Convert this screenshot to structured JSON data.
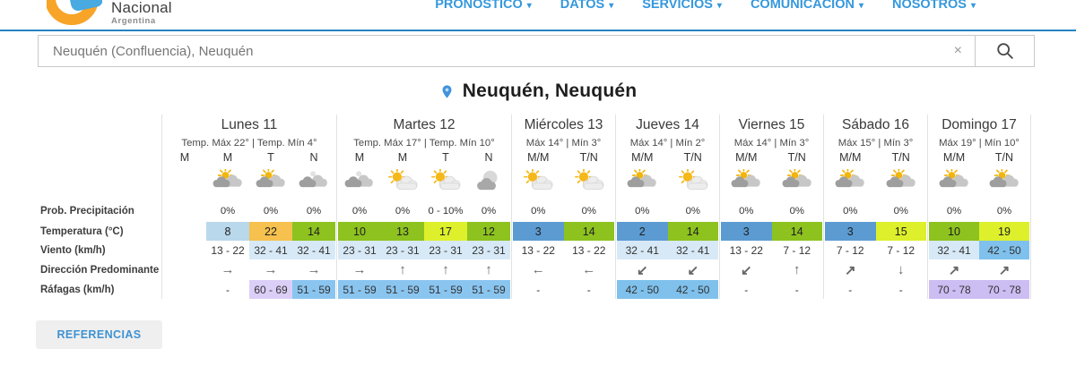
{
  "nav": {
    "caret": "▾",
    "accent_color": "#3598dc",
    "items": [
      {
        "id": "pronostico",
        "label": "PRONÓSTICO"
      },
      {
        "id": "datos",
        "label": "DATOS"
      },
      {
        "id": "servicios",
        "label": "SERVICIOS"
      },
      {
        "id": "comunicacion",
        "label": "COMUNICACIÓN"
      },
      {
        "id": "nosotros",
        "label": "NOSOTROS"
      }
    ]
  },
  "logo": {
    "name_line": "Nacional",
    "country_line": "Argentina"
  },
  "search": {
    "value": "Neuquén (Confluencia), Neuquén",
    "clear_label": "×"
  },
  "location_title": "Neuquén, Neuquén",
  "references_button": "REFERENCIAS",
  "table": {
    "row_labels": [
      "Prob. Precipitación",
      "Temperatura (°C)",
      "Viento (km/h)",
      "Dirección Predominante",
      "Ráfagas (km/h)"
    ],
    "days": [
      {
        "id": "lunes-11",
        "name": "Lunes 11",
        "temps": "Temp. Máx 22° | Temp. Mín 4°",
        "cols": [
          "M",
          "M",
          "T",
          "N"
        ],
        "wide": true,
        "cells": [
          {
            "empty": true
          },
          {
            "icon": "sun-behind-clouds",
            "prob": "0%",
            "temp": "8",
            "temp_bg": "#b9d8ec",
            "wind": "13 - 22",
            "wind_bg": "",
            "dir": "→",
            "gust": "-",
            "gust_bg": ""
          },
          {
            "icon": "sun-behind-clouds",
            "prob": "0%",
            "temp": "22",
            "temp_bg": "#f6c14e",
            "wind": "32 - 41",
            "wind_bg": "#d7e9f6",
            "dir": "→",
            "gust": "60 - 69",
            "gust_bg": "#dbcff7"
          },
          {
            "icon": "clouds-with-moon",
            "prob": "0%",
            "temp": "14",
            "temp_bg": "#8dc21f",
            "wind": "32 - 41",
            "wind_bg": "#d7e9f6",
            "dir": "→",
            "gust": "51 - 59",
            "gust_bg": "#8ac5f0"
          }
        ]
      },
      {
        "id": "martes-12",
        "name": "Martes 12",
        "temps": "Temp. Máx 17° | Temp. Mín 10°",
        "cols": [
          "M",
          "M",
          "T",
          "N"
        ],
        "wide": true,
        "cells": [
          {
            "icon": "clouds-with-moon",
            "prob": "0%",
            "temp": "10",
            "temp_bg": "#8dc21f",
            "wind": "23 - 31",
            "wind_bg": "#d7e9f6",
            "dir": "→",
            "gust": "51 - 59",
            "gust_bg": "#8ac5f0"
          },
          {
            "icon": "sun-and-cloud",
            "prob": "0%",
            "temp": "13",
            "temp_bg": "#8dc21f",
            "wind": "23 - 31",
            "wind_bg": "#d7e9f6",
            "dir": "↑",
            "gust": "51 - 59",
            "gust_bg": "#8ac5f0"
          },
          {
            "icon": "sun-and-cloud",
            "prob": "0 - 10%",
            "temp": "17",
            "temp_bg": "#ddf02b",
            "wind": "23 - 31",
            "wind_bg": "#d7e9f6",
            "dir": "↑",
            "gust": "51 - 59",
            "gust_bg": "#8ac5f0"
          },
          {
            "icon": "moon-behind-cloud",
            "prob": "0%",
            "temp": "12",
            "temp_bg": "#8dc21f",
            "wind": "23 - 31",
            "wind_bg": "#d7e9f6",
            "dir": "↑",
            "gust": "51 - 59",
            "gust_bg": "#8ac5f0"
          }
        ]
      },
      {
        "id": "miercoles-13",
        "name": "Miércoles 13",
        "temps": "Máx 14° | Mín 3°",
        "cols": [
          "M/M",
          "T/N"
        ],
        "wide": false,
        "cells": [
          {
            "icon": "sun-and-cloud",
            "prob": "0%",
            "temp": "3",
            "temp_bg": "#5b9bd1",
            "wind": "13 - 22",
            "wind_bg": "",
            "dir": "←",
            "gust": "-",
            "gust_bg": ""
          },
          {
            "icon": "sun-and-cloud",
            "prob": "0%",
            "temp": "14",
            "temp_bg": "#8dc21f",
            "wind": "13 - 22",
            "wind_bg": "",
            "dir": "←",
            "gust": "-",
            "gust_bg": ""
          }
        ]
      },
      {
        "id": "jueves-14",
        "name": "Jueves 14",
        "temps": "Máx 14° | Mín 2°",
        "cols": [
          "M/M",
          "T/N"
        ],
        "wide": false,
        "cells": [
          {
            "icon": "sun-behind-clouds",
            "prob": "0%",
            "temp": "2",
            "temp_bg": "#5b9bd1",
            "wind": "32 - 41",
            "wind_bg": "#d7e9f6",
            "dir": "↙",
            "gust": "42 - 50",
            "gust_bg": "#7fc1ec"
          },
          {
            "icon": "sun-and-cloud",
            "prob": "0%",
            "temp": "14",
            "temp_bg": "#8dc21f",
            "wind": "32 - 41",
            "wind_bg": "#d7e9f6",
            "dir": "↙",
            "gust": "42 - 50",
            "gust_bg": "#7fc1ec"
          }
        ]
      },
      {
        "id": "viernes-15",
        "name": "Viernes 15",
        "temps": "Máx 14° | Mín 3°",
        "cols": [
          "M/M",
          "T/N"
        ],
        "wide": false,
        "cells": [
          {
            "icon": "sun-behind-clouds",
            "prob": "0%",
            "temp": "3",
            "temp_bg": "#5b9bd1",
            "wind": "13 - 22",
            "wind_bg": "",
            "dir": "↙",
            "gust": "-",
            "gust_bg": ""
          },
          {
            "icon": "sun-behind-clouds",
            "prob": "0%",
            "temp": "14",
            "temp_bg": "#8dc21f",
            "wind": "7 - 12",
            "wind_bg": "",
            "dir": "↑",
            "gust": "-",
            "gust_bg": ""
          }
        ]
      },
      {
        "id": "sabado-16",
        "name": "Sábado 16",
        "temps": "Máx 15° | Mín 3°",
        "cols": [
          "M/M",
          "T/N"
        ],
        "wide": false,
        "cells": [
          {
            "icon": "sun-behind-clouds",
            "prob": "0%",
            "temp": "3",
            "temp_bg": "#5b9bd1",
            "wind": "7 - 12",
            "wind_bg": "",
            "dir": "↗",
            "gust": "-",
            "gust_bg": ""
          },
          {
            "icon": "sun-behind-clouds",
            "prob": "0%",
            "temp": "15",
            "temp_bg": "#ddf02b",
            "wind": "7 - 12",
            "wind_bg": "",
            "dir": "↓",
            "gust": "-",
            "gust_bg": ""
          }
        ]
      },
      {
        "id": "domingo-17",
        "name": "Domingo 17",
        "temps": "Máx 19° | Mín 10°",
        "cols": [
          "M/M",
          "T/N"
        ],
        "wide": false,
        "cells": [
          {
            "icon": "sun-behind-clouds",
            "prob": "0%",
            "temp": "10",
            "temp_bg": "#8dc21f",
            "wind": "32 - 41",
            "wind_bg": "#d7e9f6",
            "dir": "↗",
            "gust": "70 - 78",
            "gust_bg": "#ccbdf3"
          },
          {
            "icon": "sun-behind-clouds",
            "prob": "0%",
            "temp": "19",
            "temp_bg": "#ddf02b",
            "wind": "42 - 50",
            "wind_bg": "#7fc1ec",
            "dir": "↗",
            "gust": "70 - 78",
            "gust_bg": "#ccbdf3"
          }
        ]
      }
    ]
  }
}
